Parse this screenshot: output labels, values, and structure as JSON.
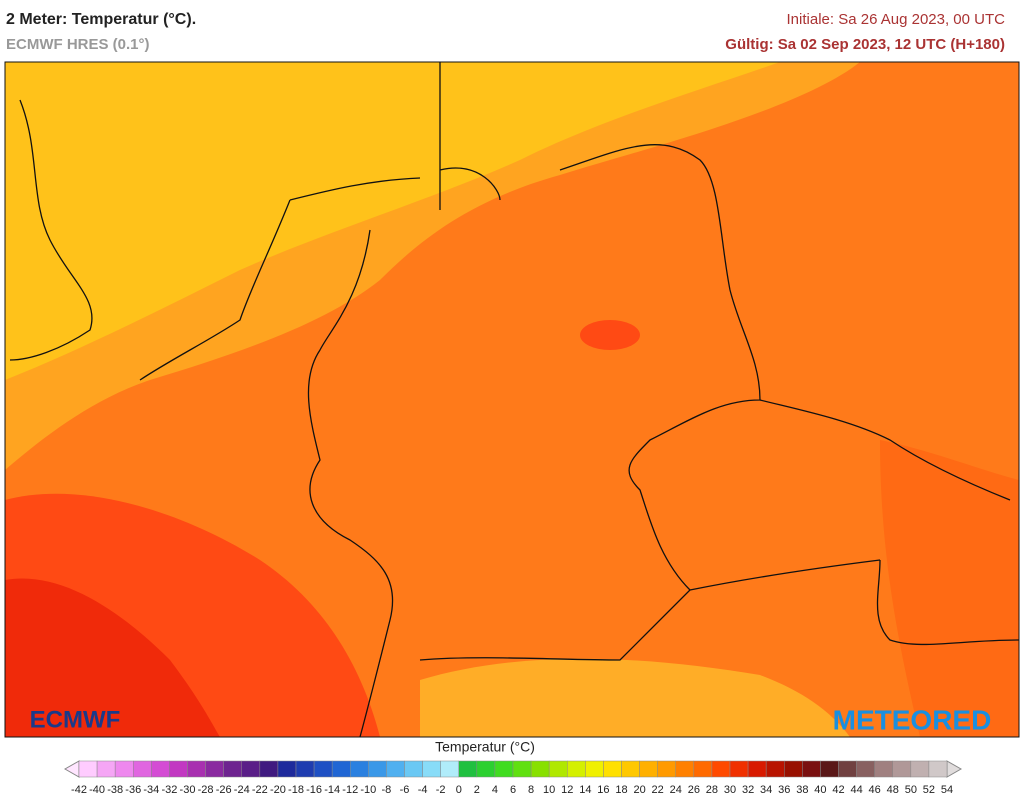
{
  "header": {
    "title": "2 Meter: Temperatur (°C).",
    "subtitle": "ECMWF HRES (0.1°)",
    "initial": "Initiale: Sa 26 Aug 2023, 00 UTC",
    "valid": "Gültig: Sa 02 Sep 2023, 12 UTC (H+180)"
  },
  "logos": {
    "left": "ECMWF",
    "right": "METEORED"
  },
  "legend": {
    "title": "Temperatur (°C)",
    "labels": [
      -42,
      -40,
      -38,
      -36,
      -34,
      -32,
      -30,
      -28,
      -26,
      -24,
      -22,
      -20,
      -18,
      -16,
      -14,
      -12,
      -10,
      -8,
      -6,
      -4,
      -2,
      0,
      2,
      4,
      6,
      8,
      10,
      12,
      14,
      16,
      18,
      20,
      22,
      24,
      26,
      28,
      30,
      32,
      34,
      36,
      38,
      40,
      42,
      44,
      46,
      48,
      50,
      52,
      54
    ],
    "colors": [
      "#ffccff",
      "#f5a6f5",
      "#ee88ee",
      "#e066e0",
      "#d44cd4",
      "#c238c2",
      "#a830b0",
      "#8a2aa0",
      "#6e2490",
      "#5a1e88",
      "#401a80",
      "#1e2a9c",
      "#1e3cb0",
      "#1e50c4",
      "#2066d4",
      "#2a80e0",
      "#3a98e8",
      "#50b0f0",
      "#6ac8f4",
      "#88dcf8",
      "#b0ecfa",
      "#20c040",
      "#2cd030",
      "#40dc20",
      "#60e010",
      "#88e000",
      "#b0e800",
      "#d4f000",
      "#f0f000",
      "#ffe000",
      "#ffc800",
      "#ffb000",
      "#ff9a00",
      "#ff8000",
      "#ff6a00",
      "#ff4a00",
      "#f03000",
      "#d81a00",
      "#b81400",
      "#981000",
      "#7a1010",
      "#5a1818",
      "#704040",
      "#886060",
      "#a08080",
      "#b09898",
      "#c0b0b0",
      "#d0c8c8"
    ]
  }
}
